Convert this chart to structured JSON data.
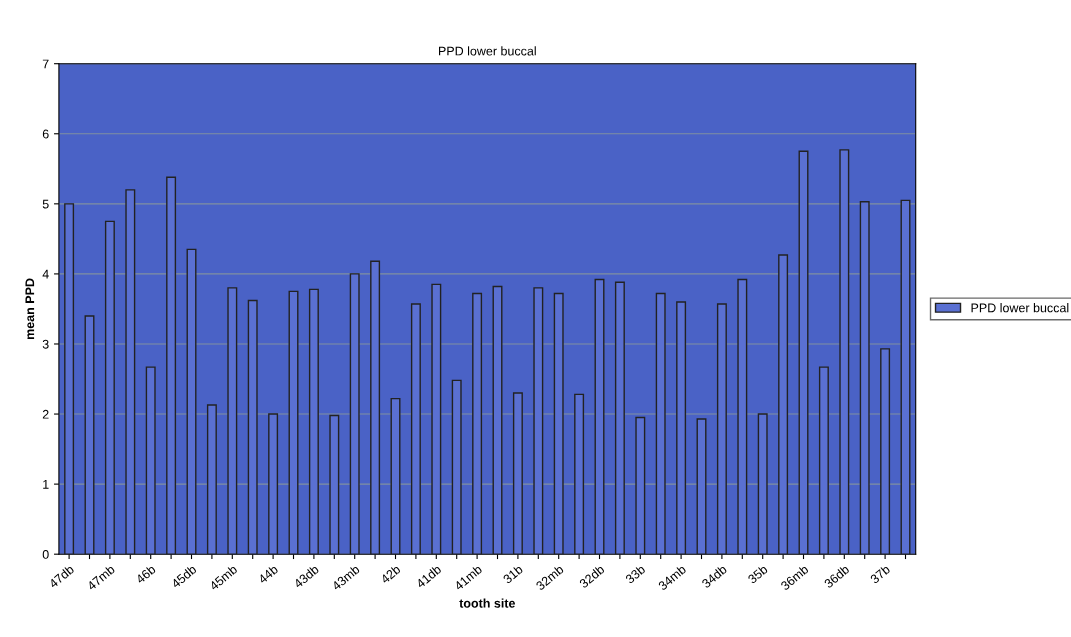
{
  "chart_data": {
    "type": "bar",
    "title": "PPD lower buccal",
    "xlabel": "tooth site",
    "ylabel": "mean PPD",
    "categories": [
      "47db",
      null,
      "47mb",
      null,
      "46b",
      null,
      "45db",
      null,
      "45mb",
      null,
      "44b",
      null,
      "43db",
      null,
      "43mb",
      null,
      "42b",
      null,
      "41db",
      null,
      "41mb",
      null,
      "31b",
      null,
      "32mb",
      null,
      "32db",
      null,
      "33b",
      null,
      "34mb",
      null,
      "34db",
      null,
      "35b",
      null,
      "36mb",
      null,
      "36db",
      null,
      "37b",
      null
    ],
    "series": [
      {
        "name": "PPD lower buccal",
        "color": "#5a70d2",
        "values": [
          5.0,
          3.4,
          4.75,
          5.2,
          2.67,
          5.38,
          4.35,
          2.13,
          3.8,
          3.62,
          2.0,
          3.75,
          3.78,
          1.98,
          4.0,
          4.18,
          2.22,
          3.57,
          3.85,
          2.48,
          3.72,
          3.82,
          2.3,
          3.8,
          3.72,
          2.28,
          3.92,
          3.88,
          1.95,
          3.72,
          3.6,
          1.93,
          3.57,
          3.92,
          2.0,
          4.27,
          5.75,
          2.67,
          5.77,
          5.03,
          2.93,
          5.05
        ]
      }
    ],
    "ylim": [
      0,
      7
    ],
    "yticks": [
      0,
      1,
      2,
      3,
      4,
      5,
      6,
      7
    ],
    "grid": "y",
    "legend": "right"
  }
}
